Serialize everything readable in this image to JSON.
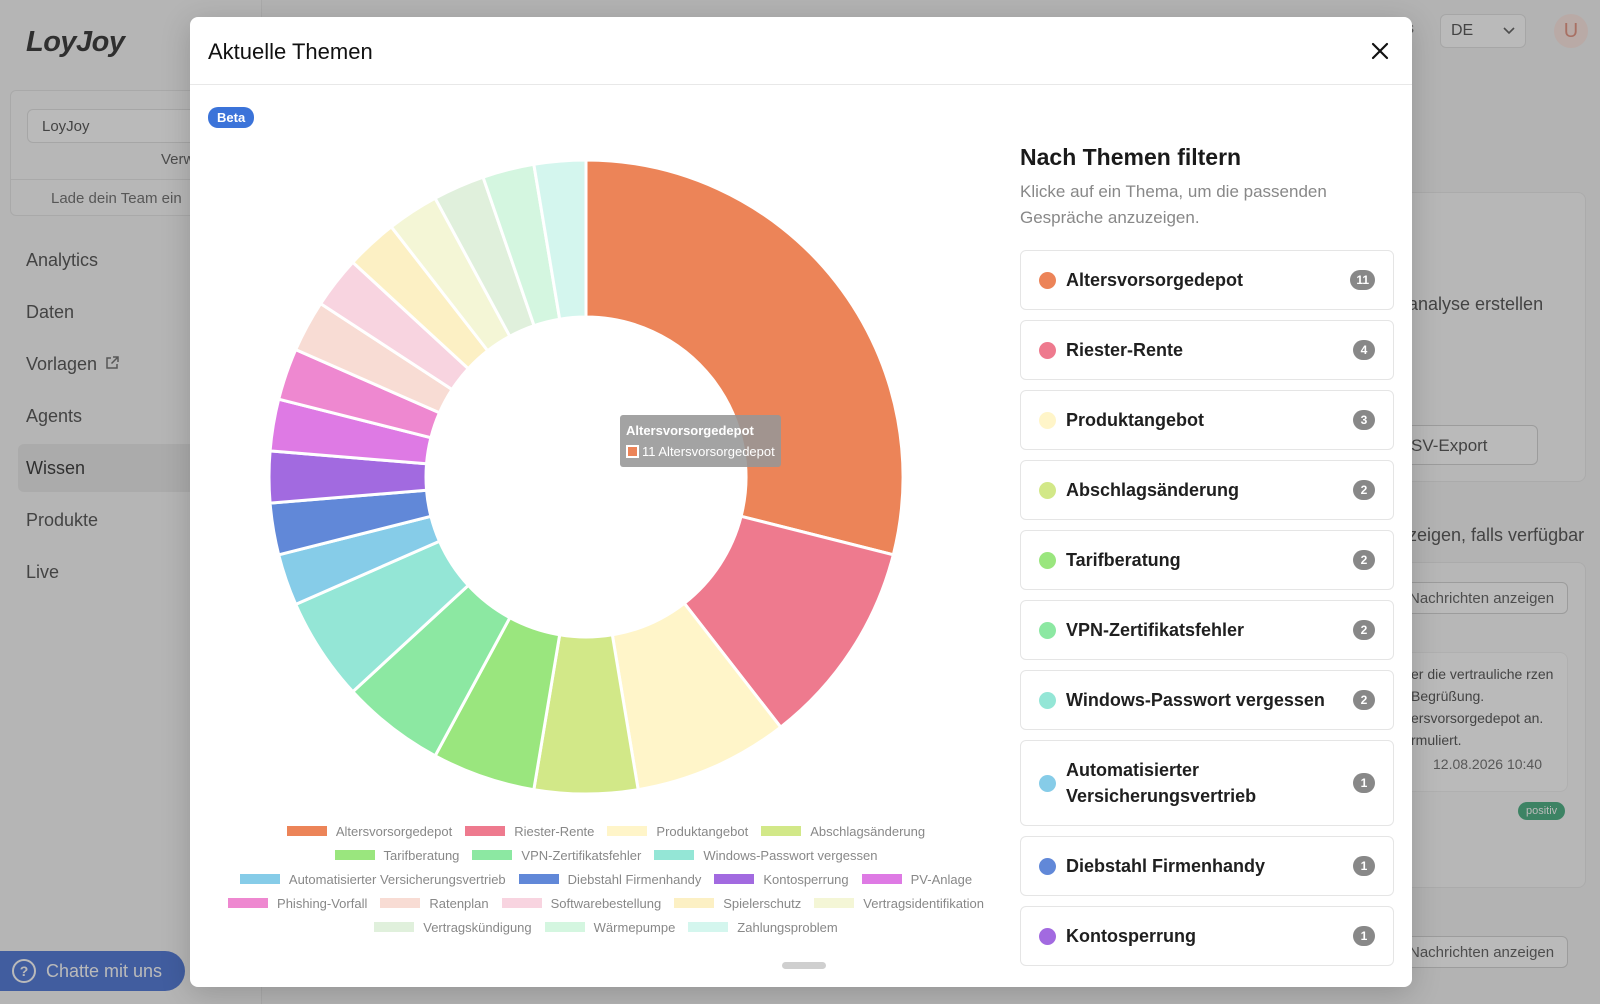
{
  "app": {
    "logo": "LoyJoy",
    "team_select": "LoyJoy",
    "team_manage": "Verw",
    "team_load": "Lade dein Team ein",
    "nav": [
      {
        "label": "Analytics"
      },
      {
        "label": "Daten"
      },
      {
        "label": "Vorlagen"
      },
      {
        "label": "Agents"
      },
      {
        "label": "Wissen"
      },
      {
        "label": "Produkte"
      },
      {
        "label": "Live"
      }
    ],
    "chat_button": "Chatte mit uns",
    "language": "DE",
    "topbar_fragment": "s",
    "avatar_letter": "U",
    "bg_analysis": "analyse erstellen",
    "bg_csv": "SV-Export",
    "bg_show_available": "zeigen, falls verfügbar",
    "bg_msg_button": "Nachrichten anzeigen",
    "bg_card_text": "er die vertrauliche rzen Begrüßung. ersvorsorgedepot an. rmuliert.",
    "bg_date": "12.08.2026 10:40",
    "bg_badge": "positiv"
  },
  "modal": {
    "title": "Aktuelle Themen",
    "beta": "Beta",
    "filter_title": "Nach Themen filtern",
    "filter_subtitle": "Klicke auf ein Thema, um die passenden Gespräche anzuzeigen.",
    "tooltip": {
      "title": "Altersvorsorgedepot",
      "line": "11 Altersvorsorgedepot"
    },
    "topics": [
      {
        "label": "Altersvorsorgedepot",
        "count": "11",
        "color": "#ec8458"
      },
      {
        "label": "Riester-Rente",
        "count": "4",
        "color": "#ee7a8e"
      },
      {
        "label": "Produktangebot",
        "count": "3",
        "color": "#fff5c9"
      },
      {
        "label": "Abschlagsänderung",
        "count": "2",
        "color": "#d2e888"
      },
      {
        "label": "Tarifberatung",
        "count": "2",
        "color": "#9ae67e"
      },
      {
        "label": "VPN-Zertifikatsfehler",
        "count": "2",
        "color": "#8ce8a2"
      },
      {
        "label": "Windows-Passwort vergessen",
        "count": "2",
        "color": "#94e6d6"
      },
      {
        "label": "Automatisierter Versicherungsvertrieb",
        "count": "1",
        "color": "#86cce8"
      },
      {
        "label": "Diebstahl Firmenhandy",
        "count": "1",
        "color": "#6188d8"
      },
      {
        "label": "Kontosperrung",
        "count": "1",
        "color": "#a26ae0"
      }
    ]
  },
  "chart_data": {
    "type": "pie",
    "categories": [
      "Altersvorsorgedepot",
      "Riester-Rente",
      "Produktangebot",
      "Abschlagsänderung",
      "Tarifberatung",
      "VPN-Zertifikatsfehler",
      "Windows-Passwort vergessen",
      "Automatisierter Versicherungsvertrieb",
      "Diebstahl Firmenhandy",
      "Kontosperrung",
      "PV-Anlage",
      "Phishing-Vorfall",
      "Ratenplan",
      "Softwarebestellung",
      "Spielerschutz",
      "Vertragsidentifikation",
      "Vertragskündigung",
      "Wärmepumpe",
      "Zahlungsproblem"
    ],
    "values": [
      11,
      4,
      3,
      2,
      2,
      2,
      2,
      1,
      1,
      1,
      1,
      1,
      1,
      1,
      1,
      1,
      1,
      1,
      1
    ],
    "colors": [
      "#ec8458",
      "#ee7a8e",
      "#fff5c9",
      "#d2e888",
      "#9ae67e",
      "#8ce8a2",
      "#94e6d6",
      "#86cce8",
      "#6188d8",
      "#a26ae0",
      "#de7ae4",
      "#ee88d0",
      "#f8dcd4",
      "#f8d4e0",
      "#fcf0c4",
      "#f4f6d6",
      "#e0f0dc",
      "#d4f6e0",
      "#d4f6ee"
    ],
    "donut": true,
    "legend_position": "bottom"
  }
}
